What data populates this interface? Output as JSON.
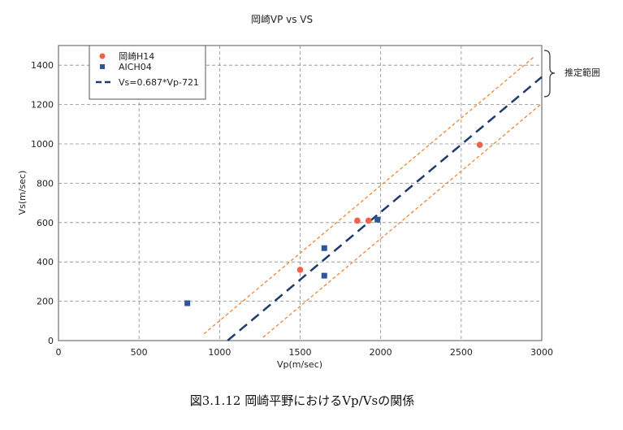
{
  "chart_data": {
    "type": "scatter",
    "title": "岡崎VP vs VS",
    "xlabel": "Vp(m/sec)",
    "ylabel": "Vs(m/sec)",
    "xlim": [
      0,
      3000
    ],
    "ylim": [
      0,
      1500
    ],
    "xticks": [
      "0",
      "500",
      "1000",
      "1500",
      "2000",
      "2500",
      "3000"
    ],
    "yticks": [
      "0",
      "200",
      "400",
      "600",
      "800",
      "1000",
      "1200",
      "1400"
    ],
    "grid": true,
    "legend_position": "top-left",
    "series": [
      {
        "name": "岡崎H14",
        "marker": "circle",
        "color": "#f0604a",
        "points": [
          [
            1500,
            360
          ],
          [
            1855,
            610
          ],
          [
            1925,
            610
          ],
          [
            2615,
            995
          ]
        ]
      },
      {
        "name": "AICH04",
        "marker": "square",
        "color": "#2f5597",
        "points": [
          [
            800,
            190
          ],
          [
            1650,
            470
          ],
          [
            1650,
            330
          ],
          [
            1980,
            615
          ]
        ]
      },
      {
        "name": "Vs=0.687*Vp-721",
        "marker": "dashed-line",
        "color": "#1f3a6e",
        "slope": 0.687,
        "intercept": -721,
        "x_range": [
          1050,
          3000
        ]
      }
    ],
    "bounds": {
      "color": "#ee7d2a",
      "upper": {
        "slope": 0.687,
        "intercept": -586,
        "x_range": [
          903,
          2950
        ]
      },
      "lower": {
        "slope": 0.687,
        "intercept": -856,
        "x_range": [
          1270,
          2990
        ]
      }
    },
    "annotation": "推定範囲",
    "caption": "図3.1.12 岡崎平野におけるVp/Vsの関係"
  }
}
